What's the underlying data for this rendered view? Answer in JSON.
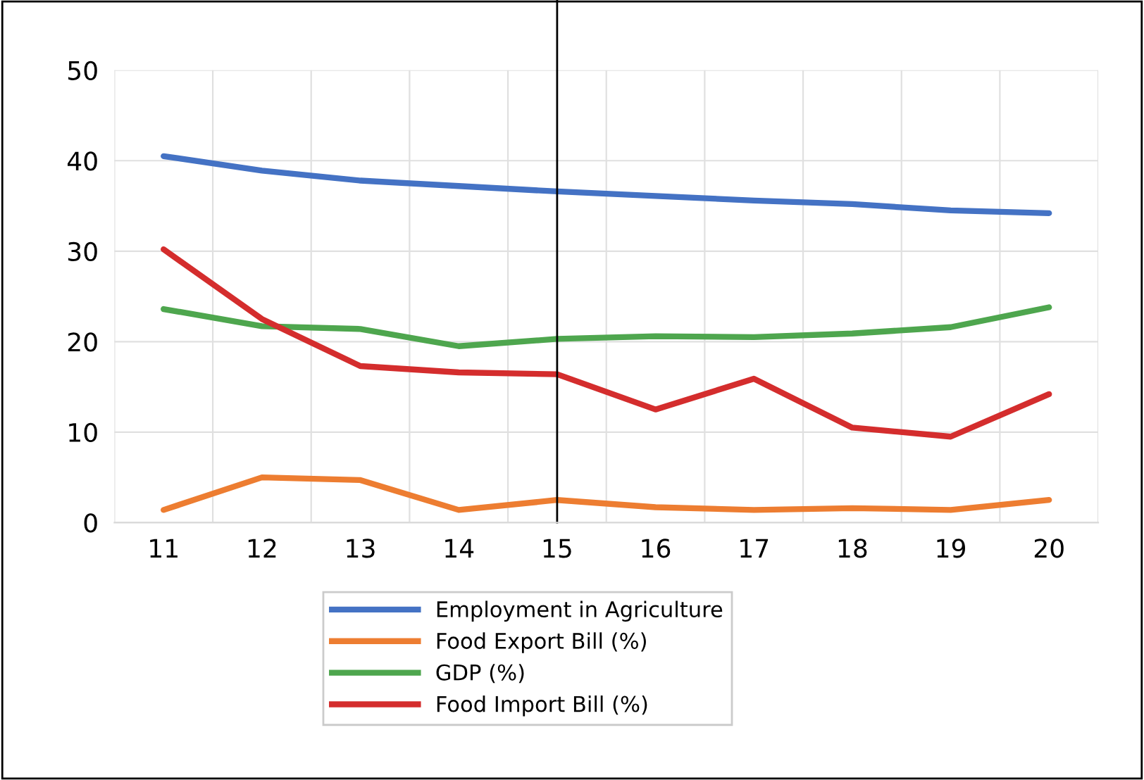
{
  "chart_data": {
    "type": "line",
    "categories": [
      "11",
      "12",
      "13",
      "14",
      "15",
      "16",
      "17",
      "18",
      "19",
      "20"
    ],
    "series": [
      {
        "name": "Employment in Agriculture",
        "color": "#4472c4",
        "values": [
          40.5,
          38.9,
          37.8,
          37.2,
          36.6,
          36.1,
          35.6,
          35.2,
          34.5,
          34.2
        ]
      },
      {
        "name": "Food Export Bill (%)",
        "color": "#ed7d31",
        "values": [
          1.4,
          5.0,
          4.7,
          1.4,
          2.5,
          1.7,
          1.4,
          1.6,
          1.4,
          2.5
        ]
      },
      {
        "name": "GDP (%)",
        "color": "#4ea64e",
        "values": [
          23.6,
          21.7,
          21.4,
          19.5,
          20.3,
          20.6,
          20.5,
          20.9,
          21.6,
          23.8
        ]
      },
      {
        "name": "Food Import Bill (%)",
        "color": "#d42d2d",
        "values": [
          30.2,
          22.5,
          17.3,
          16.6,
          16.4,
          12.5,
          15.9,
          10.5,
          9.5,
          14.2
        ]
      }
    ],
    "ylim": [
      0,
      50
    ],
    "yticks": [
      0,
      10,
      20,
      30,
      40,
      50
    ],
    "grid": true,
    "legend": "bottom",
    "marker": "none",
    "line_style": "solid",
    "ref_lines": [
      {
        "axis": "x",
        "value": "15",
        "color": "#000000"
      }
    ]
  }
}
